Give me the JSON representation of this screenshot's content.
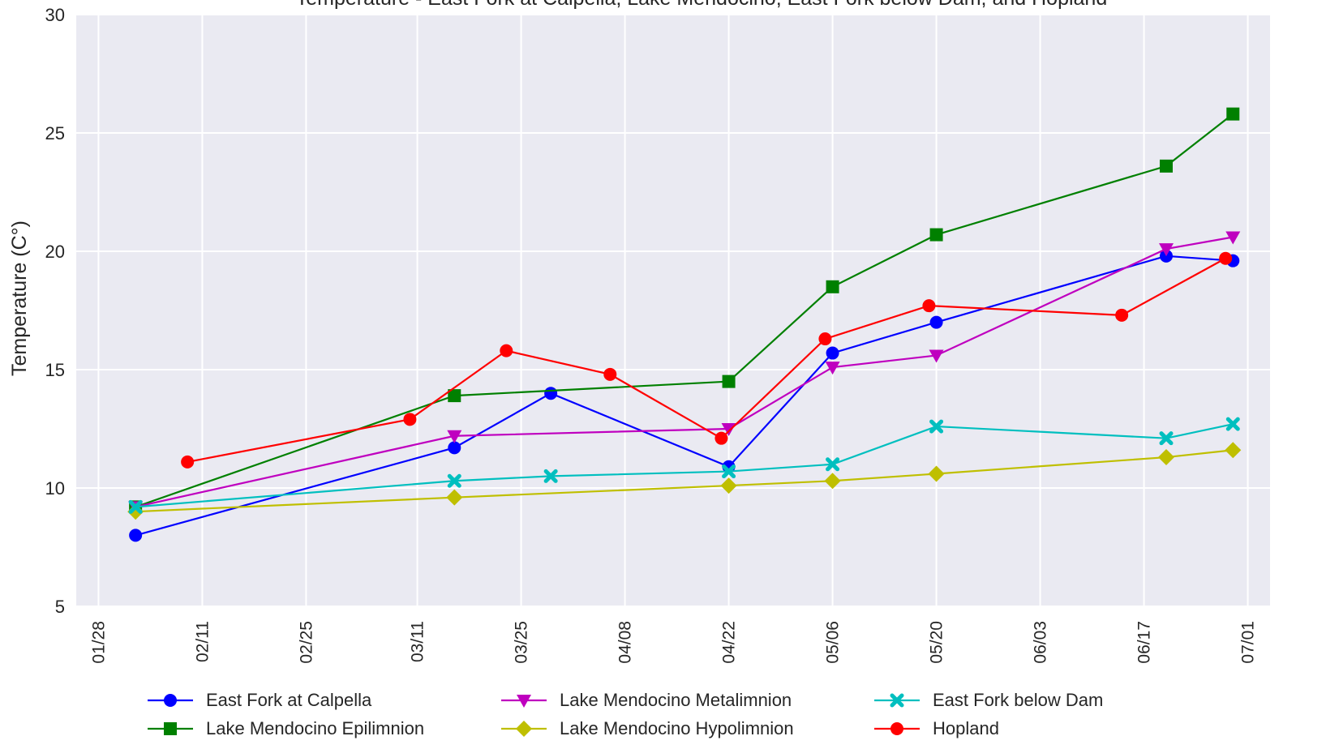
{
  "chart_data": {
    "type": "line",
    "title": "Temperature - East Fork at Calpella, Lake Mendocino, East Fork below Dam, and Hopland",
    "xlabel": "",
    "ylabel": "Temperature (C°)",
    "ylim": [
      5,
      30
    ],
    "yticks": [
      "5",
      "10",
      "15",
      "20",
      "25",
      "30"
    ],
    "xlim": [
      "01/25",
      "07/04"
    ],
    "xticks": [
      {
        "label": "01/28",
        "date": "01/28"
      },
      {
        "label": "02/11",
        "date": "02/11"
      },
      {
        "label": "02/25",
        "date": "02/25"
      },
      {
        "label": "03/11",
        "date": "03/11"
      },
      {
        "label": "03/25",
        "date": "03/25"
      },
      {
        "label": "04/08",
        "date": "04/08"
      },
      {
        "label": "04/22",
        "date": "04/22"
      },
      {
        "label": "05/06",
        "date": "05/06"
      },
      {
        "label": "05/20",
        "date": "05/20"
      },
      {
        "label": "06/03",
        "date": "06/03"
      },
      {
        "label": "06/17",
        "date": "06/17"
      },
      {
        "label": "07/01",
        "date": "07/01"
      }
    ],
    "grid": true,
    "legend_position": "bottom",
    "series": [
      {
        "name": "East Fork at Calpella",
        "color": "#0000ff",
        "marker": "circle",
        "points": [
          [
            "02/02",
            8.0
          ],
          [
            "03/16",
            11.7
          ],
          [
            "03/29",
            14.0
          ],
          [
            "04/22",
            10.9
          ],
          [
            "05/06",
            15.7
          ],
          [
            "05/20",
            17.0
          ],
          [
            "06/20",
            19.8
          ],
          [
            "06/29",
            19.6
          ]
        ]
      },
      {
        "name": "Lake Mendocino Epilimnion",
        "color": "#008000",
        "marker": "square",
        "points": [
          [
            "02/02",
            9.2
          ],
          [
            "03/16",
            13.9
          ],
          [
            "04/22",
            14.5
          ],
          [
            "05/06",
            18.5
          ],
          [
            "05/20",
            20.7
          ],
          [
            "06/20",
            23.6
          ],
          [
            "06/29",
            25.8
          ]
        ]
      },
      {
        "name": "Lake Mendocino Metalimnion",
        "color": "#bf00bf",
        "marker": "triangle-down",
        "points": [
          [
            "02/02",
            9.2
          ],
          [
            "03/16",
            12.2
          ],
          [
            "04/22",
            12.5
          ],
          [
            "05/06",
            15.1
          ],
          [
            "05/20",
            15.6
          ],
          [
            "06/20",
            20.1
          ],
          [
            "06/29",
            20.6
          ]
        ]
      },
      {
        "name": "Lake Mendocino Hypolimnion",
        "color": "#bfbf00",
        "marker": "diamond",
        "points": [
          [
            "02/02",
            9.0
          ],
          [
            "03/16",
            9.6
          ],
          [
            "04/22",
            10.1
          ],
          [
            "05/06",
            10.3
          ],
          [
            "05/20",
            10.6
          ],
          [
            "06/20",
            11.3
          ],
          [
            "06/29",
            11.6
          ]
        ]
      },
      {
        "name": "East Fork below Dam",
        "color": "#00bfbf",
        "marker": "x",
        "points": [
          [
            "02/02",
            9.2
          ],
          [
            "03/16",
            10.3
          ],
          [
            "03/29",
            10.5
          ],
          [
            "04/22",
            10.7
          ],
          [
            "05/06",
            11.0
          ],
          [
            "05/20",
            12.6
          ],
          [
            "06/20",
            12.1
          ],
          [
            "06/29",
            12.7
          ]
        ]
      },
      {
        "name": "Hopland",
        "color": "#ff0000",
        "marker": "circle",
        "points": [
          [
            "02/09",
            11.1
          ],
          [
            "03/10",
            12.9
          ],
          [
            "03/23",
            15.8
          ],
          [
            "04/06",
            14.8
          ],
          [
            "04/21",
            12.1
          ],
          [
            "05/05",
            16.3
          ],
          [
            "05/19",
            17.7
          ],
          [
            "06/14",
            17.3
          ],
          [
            "06/28",
            19.7
          ]
        ]
      }
    ]
  }
}
